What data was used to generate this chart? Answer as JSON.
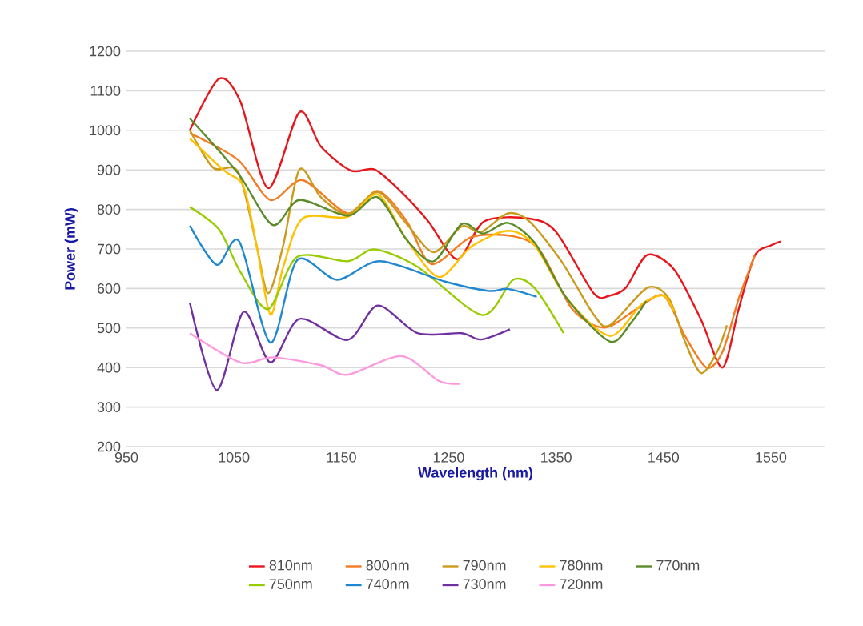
{
  "chart_data": {
    "type": "line",
    "xlabel": "Wavelength (nm)",
    "ylabel": "Power (mW)",
    "xlim": [
      950,
      1600
    ],
    "xticks": [
      950,
      1050,
      1150,
      1250,
      1350,
      1450,
      1550
    ],
    "ylim": [
      200,
      1200
    ],
    "yticks": [
      200,
      300,
      400,
      500,
      600,
      700,
      800,
      900,
      1000,
      1100,
      1200
    ],
    "grid": "y",
    "legend": "bottom",
    "marker": "none",
    "line_style": "solid",
    "series": [
      {
        "name": "810nm",
        "color": "#e8161b",
        "x": [
          1009,
          1036,
          1056,
          1082,
          1111,
          1131,
          1159,
          1181,
          1206,
          1231,
          1258,
          1283,
          1325,
          1350,
          1385,
          1400,
          1415,
          1435,
          1460,
          1485,
          1505,
          1520,
          1535,
          1550,
          1559
        ],
        "values": [
          1000,
          1130,
          1073,
          854,
          1046,
          959,
          898,
          901,
          844,
          770,
          674,
          770,
          777,
          743,
          588,
          582,
          602,
          685,
          648,
          521,
          400,
          548,
          683,
          709,
          719
        ]
      },
      {
        "name": "800nm",
        "color": "#f47b20",
        "x": [
          1009,
          1054,
          1084,
          1114,
          1156,
          1184,
          1211,
          1234,
          1271,
          1310,
          1335,
          1365,
          1395,
          1425,
          1450,
          1470,
          1490,
          1505,
          1520,
          1535
        ],
        "values": [
          993,
          925,
          824,
          874,
          790,
          847,
          770,
          662,
          730,
          732,
          696,
          548,
          501,
          548,
          582,
          480,
          400,
          440,
          574,
          683
        ]
      },
      {
        "name": "790nm",
        "color": "#cc9a1a",
        "x": [
          1009,
          1031,
          1054,
          1071,
          1082,
          1096,
          1111,
          1131,
          1156,
          1184,
          1211,
          1236,
          1262,
          1280,
          1305,
          1325,
          1355,
          1385,
          1400,
          1435,
          1455,
          1470,
          1485,
          1500,
          1509
        ],
        "values": [
          1000,
          905,
          895,
          710,
          588,
          710,
          901,
          831,
          788,
          844,
          763,
          692,
          757,
          743,
          790,
          770,
          669,
          534,
          507,
          602,
          575,
          466,
          386,
          440,
          507
        ]
      },
      {
        "name": "780nm",
        "color": "#ffc000",
        "x": [
          1009,
          1041,
          1059,
          1071,
          1084,
          1096,
          1114,
          1156,
          1184,
          1211,
          1241,
          1271,
          1305,
          1330,
          1360,
          1400,
          1430,
          1450,
          1460
        ],
        "values": [
          979,
          898,
          858,
          710,
          534,
          655,
          777,
          781,
          838,
          723,
          629,
          706,
          746,
          709,
          575,
          480,
          561,
          582,
          541
        ]
      },
      {
        "name": "770nm",
        "color": "#5b8c2a",
        "x": [
          1009,
          1054,
          1086,
          1111,
          1156,
          1184,
          1211,
          1236,
          1262,
          1282,
          1305,
          1330,
          1360,
          1400,
          1420,
          1434
        ],
        "values": [
          1030,
          891,
          761,
          824,
          784,
          831,
          723,
          669,
          763,
          739,
          766,
          716,
          575,
          466,
          514,
          568
        ]
      },
      {
        "name": "750nm",
        "color": "#99cc00",
        "x": [
          1009,
          1036,
          1056,
          1082,
          1109,
          1156,
          1181,
          1221,
          1281,
          1310,
          1330,
          1357
        ],
        "values": [
          806,
          750,
          642,
          548,
          680,
          669,
          699,
          655,
          533,
          622,
          601,
          487
        ]
      },
      {
        "name": "740nm",
        "color": "#1f88d0",
        "x": [
          1009,
          1034,
          1055,
          1084,
          1109,
          1146,
          1186,
          1246,
          1287,
          1305,
          1332
        ],
        "values": [
          759,
          660,
          719,
          463,
          672,
          622,
          669,
          618,
          594,
          599,
          579
        ]
      },
      {
        "name": "730nm",
        "color": "#7030a0",
        "x": [
          1009,
          1034,
          1059,
          1084,
          1111,
          1156,
          1184,
          1221,
          1262,
          1280,
          1307
        ],
        "values": [
          564,
          343,
          541,
          413,
          523,
          470,
          557,
          487,
          487,
          471,
          497
        ]
      },
      {
        "name": "720nm",
        "color": "#ff99dd",
        "x": [
          1009,
          1056,
          1086,
          1131,
          1156,
          1206,
          1241,
          1260
        ],
        "values": [
          487,
          413,
          426,
          406,
          382,
          429,
          366,
          359
        ]
      }
    ]
  }
}
